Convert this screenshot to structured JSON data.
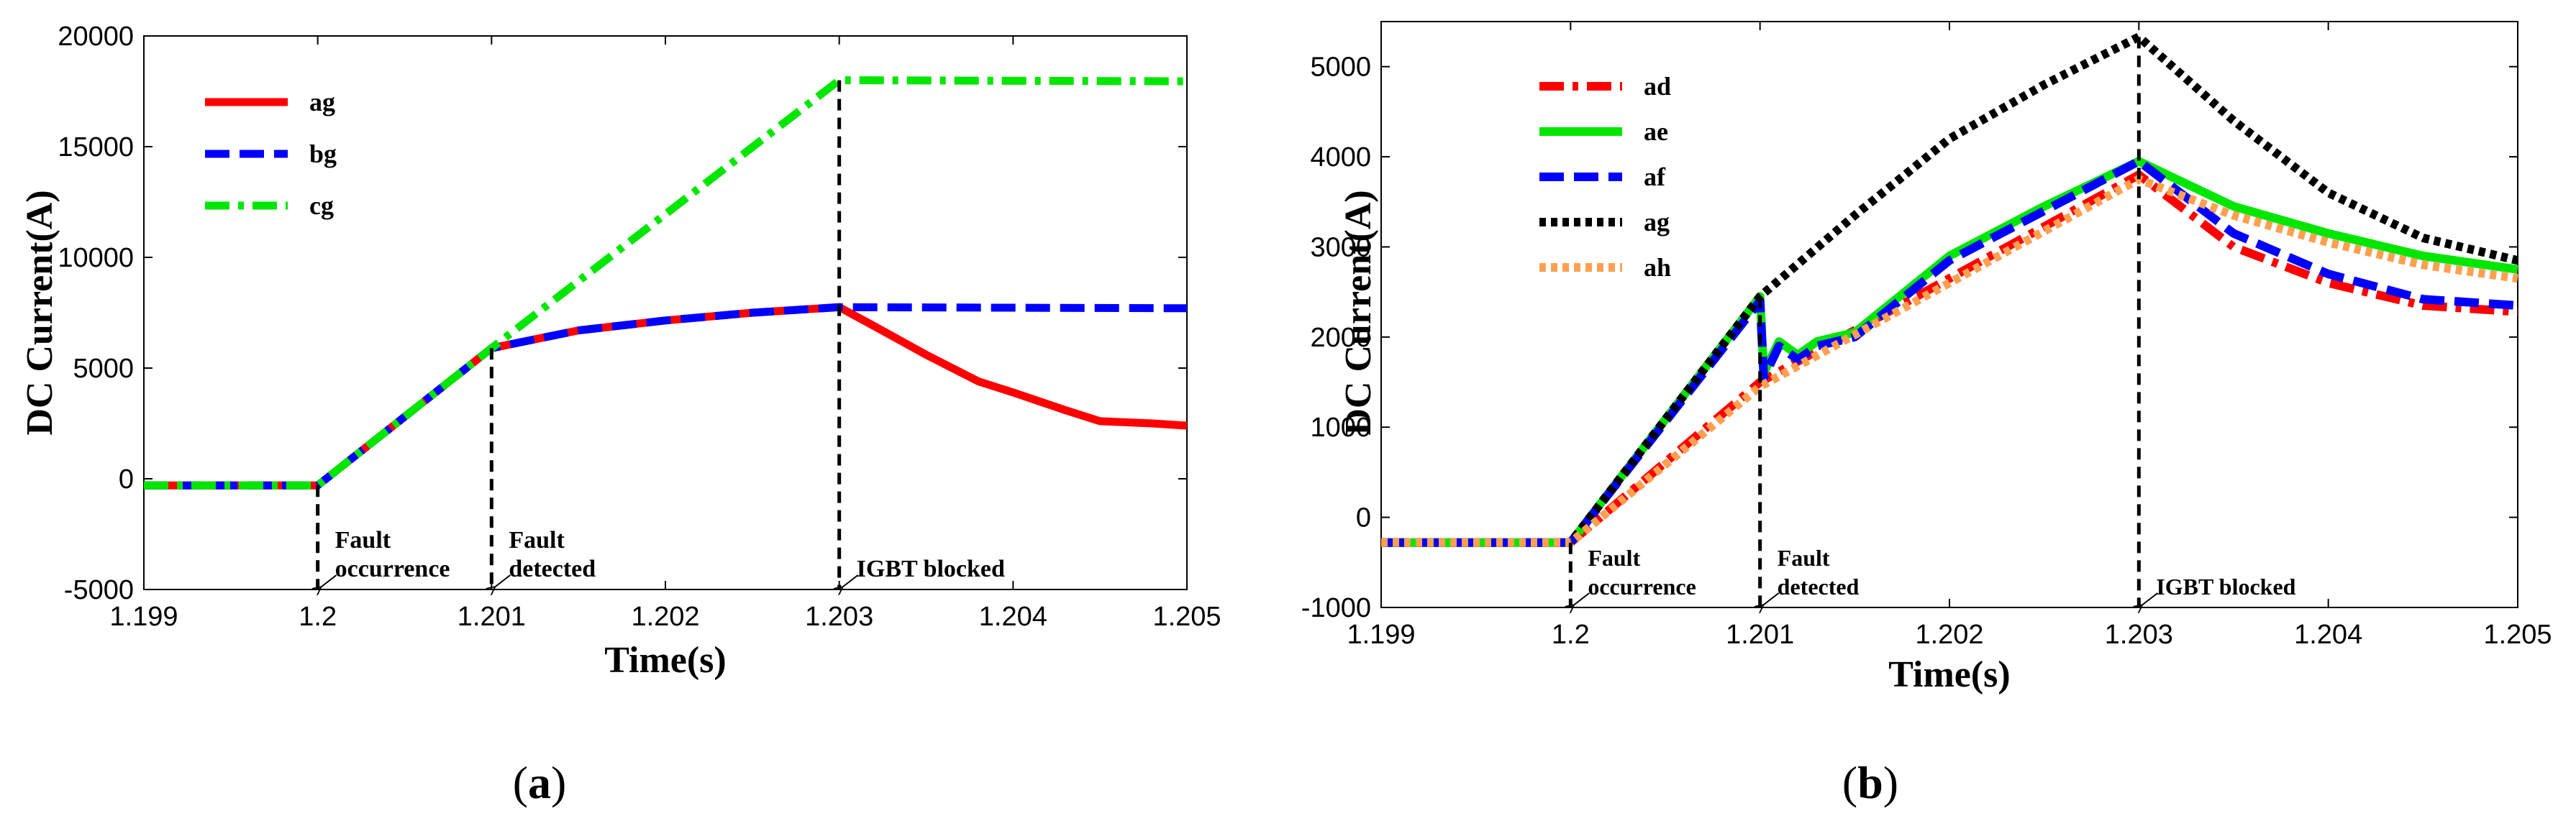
{
  "chart_data": [
    {
      "type": "line",
      "panel_label": "(a)",
      "panel_letter": "a",
      "xlabel": "Time(s)",
      "ylabel": "DC Current(A)",
      "xlim": [
        1.199,
        1.205
      ],
      "ylim": [
        -5000,
        20000
      ],
      "xticks": [
        1.199,
        1.2,
        1.201,
        1.202,
        1.203,
        1.204,
        1.205
      ],
      "xtick_labels": [
        "1.199",
        "1.2",
        "1.201",
        "1.202",
        "1.203",
        "1.204",
        "1.205"
      ],
      "yticks": [
        -5000,
        0,
        5000,
        10000,
        15000,
        20000
      ],
      "ytick_labels": [
        "-5000",
        "0",
        "5000",
        "10000",
        "15000",
        "20000"
      ],
      "legend_position": "top-left",
      "series": [
        {
          "name": "ag",
          "color": "#ff0000",
          "style": "solid",
          "points": [
            [
              1.199,
              -300
            ],
            [
              1.2,
              -300
            ],
            [
              1.201,
              5900
            ],
            [
              1.2015,
              6700
            ],
            [
              1.202,
              7150
            ],
            [
              1.2025,
              7500
            ],
            [
              1.203,
              7750
            ],
            [
              1.2032,
              6900
            ],
            [
              1.2035,
              5600
            ],
            [
              1.2038,
              4400
            ],
            [
              1.204,
              3900
            ],
            [
              1.2043,
              3100
            ],
            [
              1.2045,
              2600
            ],
            [
              1.2048,
              2500
            ],
            [
              1.205,
              2400
            ]
          ]
        },
        {
          "name": "bg",
          "color": "#0000ff",
          "style": "dash",
          "points": [
            [
              1.199,
              -300
            ],
            [
              1.2,
              -300
            ],
            [
              1.201,
              5900
            ],
            [
              1.2015,
              6700
            ],
            [
              1.202,
              7150
            ],
            [
              1.2025,
              7500
            ],
            [
              1.203,
              7750
            ],
            [
              1.205,
              7700
            ]
          ]
        },
        {
          "name": "cg",
          "color": "#00e600",
          "style": "dashdot",
          "points": [
            [
              1.199,
              -300
            ],
            [
              1.2,
              -300
            ],
            [
              1.201,
              5900
            ],
            [
              1.203,
              18000
            ],
            [
              1.205,
              17950
            ]
          ]
        }
      ],
      "annotations": [
        {
          "text_lines": [
            "Fault",
            "occurrence"
          ],
          "x": 1.2
        },
        {
          "text_lines": [
            "Fault",
            "detected"
          ],
          "x": 1.201
        },
        {
          "text_lines": [
            "IGBT blocked"
          ],
          "x": 1.203
        }
      ],
      "markers": [
        {
          "x": 1.2,
          "y_top": -300
        },
        {
          "x": 1.201,
          "y_top": 5900
        },
        {
          "x": 1.203,
          "y_top": 18000
        }
      ]
    },
    {
      "type": "line",
      "panel_label": "(b)",
      "panel_letter": "b",
      "xlabel": "Time(s)",
      "ylabel": "DC Current(A)",
      "xlim": [
        1.199,
        1.205
      ],
      "ylim": [
        -1000,
        5500
      ],
      "xticks": [
        1.199,
        1.2,
        1.201,
        1.202,
        1.203,
        1.204,
        1.205
      ],
      "xtick_labels": [
        "1.199",
        "1.2",
        "1.201",
        "1.202",
        "1.203",
        "1.204",
        "1.205"
      ],
      "yticks": [
        -1000,
        0,
        1000,
        2000,
        3000,
        4000,
        5000
      ],
      "ytick_labels": [
        "-1000",
        "0",
        "1000",
        "2000",
        "3000",
        "4000",
        "5000"
      ],
      "legend_position": "top-left",
      "series": [
        {
          "name": "ad",
          "color": "#ff0000",
          "style": "dashdot",
          "points": [
            [
              1.199,
              -280
            ],
            [
              1.2,
              -280
            ],
            [
              1.201,
              1500
            ],
            [
              1.202,
              2650
            ],
            [
              1.203,
              3800
            ],
            [
              1.2035,
              3000
            ],
            [
              1.204,
              2600
            ],
            [
              1.2045,
              2350
            ],
            [
              1.205,
              2280
            ]
          ]
        },
        {
          "name": "ae",
          "color": "#00e600",
          "style": "solid",
          "points": [
            [
              1.199,
              -280
            ],
            [
              1.2,
              -280
            ],
            [
              1.201,
              2450
            ],
            [
              1.20102,
              1600
            ],
            [
              1.2011,
              1950
            ],
            [
              1.2012,
              1800
            ],
            [
              1.2013,
              1950
            ],
            [
              1.2015,
              2050
            ],
            [
              1.202,
              2900
            ],
            [
              1.2025,
              3450
            ],
            [
              1.203,
              3950
            ],
            [
              1.2035,
              3450
            ],
            [
              1.204,
              3150
            ],
            [
              1.2045,
              2900
            ],
            [
              1.205,
              2750
            ]
          ]
        },
        {
          "name": "af",
          "color": "#0000ff",
          "style": "dash",
          "points": [
            [
              1.199,
              -280
            ],
            [
              1.2,
              -280
            ],
            [
              1.201,
              2400
            ],
            [
              1.20102,
              1550
            ],
            [
              1.2011,
              1900
            ],
            [
              1.2012,
              1750
            ],
            [
              1.2013,
              1900
            ],
            [
              1.2015,
              2000
            ],
            [
              1.202,
              2850
            ],
            [
              1.2025,
              3400
            ],
            [
              1.203,
              3950
            ],
            [
              1.2035,
              3150
            ],
            [
              1.204,
              2700
            ],
            [
              1.2045,
              2420
            ],
            [
              1.205,
              2350
            ]
          ]
        },
        {
          "name": "ag",
          "color": "#000000",
          "style": "dot",
          "points": [
            [
              1.199,
              -280
            ],
            [
              1.2,
              -280
            ],
            [
              1.201,
              2450
            ],
            [
              1.2015,
              3350
            ],
            [
              1.202,
              4200
            ],
            [
              1.2025,
              4800
            ],
            [
              1.203,
              5330
            ],
            [
              1.2035,
              4400
            ],
            [
              1.204,
              3600
            ],
            [
              1.2045,
              3100
            ],
            [
              1.205,
              2850
            ]
          ]
        },
        {
          "name": "ah",
          "color": "#ffa050",
          "style": "dot",
          "points": [
            [
              1.199,
              -280
            ],
            [
              1.2,
              -280
            ],
            [
              1.201,
              1450
            ],
            [
              1.202,
              2600
            ],
            [
              1.203,
              3750
            ],
            [
              1.2035,
              3350
            ],
            [
              1.204,
              3050
            ],
            [
              1.2045,
              2800
            ],
            [
              1.205,
              2650
            ]
          ]
        }
      ],
      "annotations": [
        {
          "text_lines": [
            "Fault",
            "occurrence"
          ],
          "x": 1.2
        },
        {
          "text_lines": [
            "Fault",
            "detected"
          ],
          "x": 1.201
        },
        {
          "text_lines": [
            "IGBT blocked"
          ],
          "x": 1.203
        }
      ],
      "markers": [
        {
          "x": 1.2,
          "y_top": -280
        },
        {
          "x": 1.201,
          "y_top": 2450
        },
        {
          "x": 1.203,
          "y_top": 5330
        }
      ]
    }
  ]
}
